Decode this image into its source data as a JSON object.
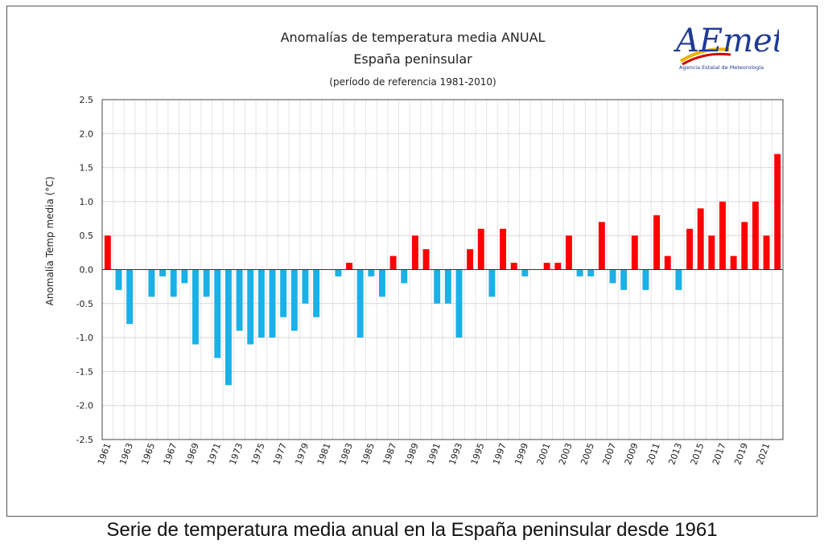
{
  "chart_data": {
    "type": "bar",
    "title": "Anomalías de temperatura media ANUAL",
    "subtitle": "España peninsular",
    "subtitle2": "(período de referencia 1981-2010)",
    "xlabel": "",
    "ylabel": "Anomalía Temp media (°C)",
    "ylim": [
      -2.5,
      2.5
    ],
    "yticks": [
      "2.5",
      "2.0",
      "1.5",
      "1.0",
      "0.5",
      "0.0",
      "-0.5",
      "-1.0",
      "-1.5",
      "-2.0",
      "-2.5"
    ],
    "ytick_values": [
      2.5,
      2.0,
      1.5,
      1.0,
      0.5,
      0.0,
      -0.5,
      -1.0,
      -1.5,
      -2.0,
      -2.5
    ],
    "grid": true,
    "colors": {
      "positive": "#ff0000",
      "negative": "#1ab0e8"
    },
    "x": [
      1961,
      1962,
      1963,
      1964,
      1965,
      1966,
      1967,
      1968,
      1969,
      1970,
      1971,
      1972,
      1973,
      1974,
      1975,
      1976,
      1977,
      1978,
      1979,
      1980,
      1981,
      1982,
      1983,
      1984,
      1985,
      1986,
      1987,
      1988,
      1989,
      1990,
      1991,
      1992,
      1993,
      1994,
      1995,
      1996,
      1997,
      1998,
      1999,
      2000,
      2001,
      2002,
      2003,
      2004,
      2005,
      2006,
      2007,
      2008,
      2009,
      2010,
      2011,
      2012,
      2013,
      2014,
      2015,
      2016,
      2017,
      2018,
      2019,
      2020,
      2021,
      2022
    ],
    "xtick_labels": [
      "1961",
      "1963",
      "1965",
      "1967",
      "1969",
      "1971",
      "1973",
      "1975",
      "1977",
      "1979",
      "1981",
      "1983",
      "1985",
      "1987",
      "1989",
      "1991",
      "1993",
      "1995",
      "1997",
      "1999",
      "2001",
      "2003",
      "2005",
      "2007",
      "2009",
      "2011",
      "2013",
      "2015",
      "2017",
      "2019",
      "2021"
    ],
    "values": [
      0.5,
      -0.3,
      -0.8,
      0.0,
      -0.4,
      -0.1,
      -0.4,
      -0.2,
      -1.1,
      -0.4,
      -1.3,
      -1.7,
      -0.9,
      -1.1,
      -1.0,
      -1.0,
      -0.7,
      -0.9,
      -0.5,
      -0.7,
      0.0,
      -0.1,
      0.1,
      -1.0,
      -0.1,
      -0.4,
      0.2,
      -0.2,
      0.5,
      0.3,
      -0.5,
      -0.5,
      -1.0,
      0.3,
      0.6,
      -0.4,
      0.6,
      0.1,
      -0.1,
      0.0,
      0.1,
      0.1,
      0.5,
      -0.1,
      -0.1,
      0.7,
      -0.2,
      -0.3,
      0.5,
      -0.3,
      0.8,
      0.2,
      -0.3,
      0.6,
      0.9,
      0.5,
      1.0,
      0.2,
      0.7,
      1.0,
      0.5,
      1.7
    ]
  },
  "logo": {
    "text": "AEmet",
    "subtext": "Agencia Estatal de Meteorología"
  },
  "caption": "Serie de temperatura media anual en la España peninsular desde 1961"
}
